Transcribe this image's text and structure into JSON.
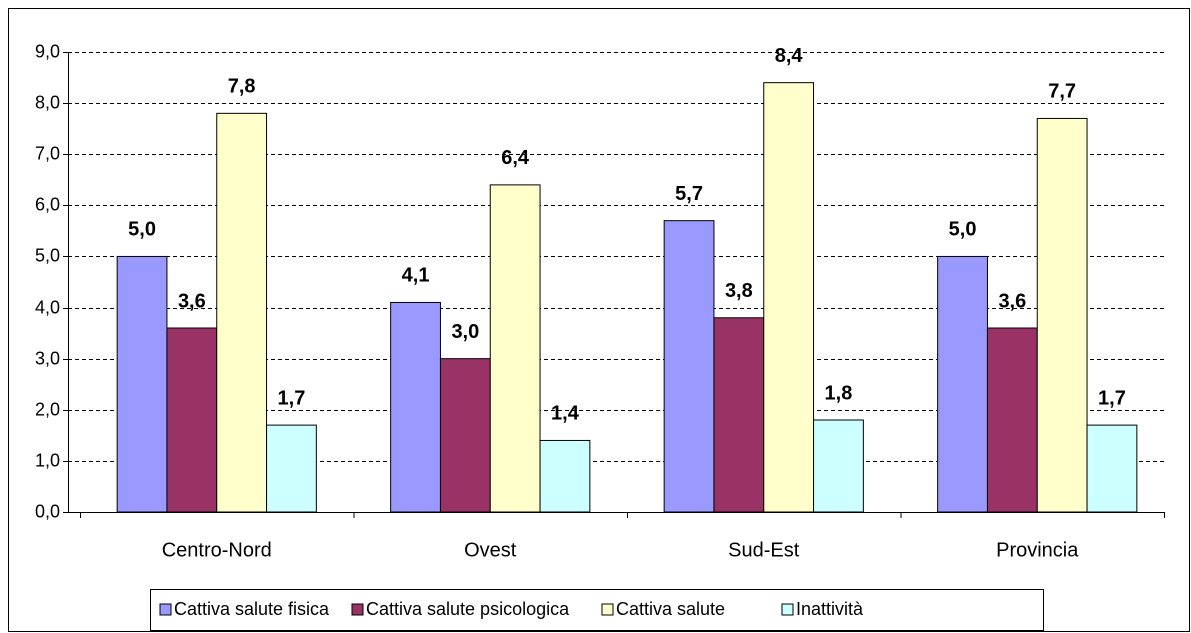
{
  "chart_data": {
    "type": "bar",
    "categories": [
      "Centro-Nord",
      "Ovest",
      "Sud-Est",
      "Provincia"
    ],
    "series": [
      {
        "name": "Cattiva salute fisica",
        "color": "#9999ff",
        "values": [
          5.0,
          4.1,
          5.7,
          5.0
        ],
        "value_labels": [
          "5,0",
          "4,1",
          "5,7",
          "5,0"
        ]
      },
      {
        "name": "Cattiva salute psicologica",
        "color": "#993366",
        "values": [
          3.6,
          3.0,
          3.8,
          3.6
        ],
        "value_labels": [
          "3,6",
          "3,0",
          "3,8",
          "3,6"
        ]
      },
      {
        "name": "Cattiva salute",
        "color": "#ffffcc",
        "values": [
          7.8,
          6.4,
          8.4,
          7.7
        ],
        "value_labels": [
          "7,8",
          "6,4",
          "8,4",
          "7,7"
        ]
      },
      {
        "name": "Inattività",
        "color": "#ccffff",
        "values": [
          1.7,
          1.4,
          1.8,
          1.7
        ],
        "value_labels": [
          "1,7",
          "1,4",
          "1,8",
          "1,7"
        ]
      }
    ],
    "ylim": [
      0,
      9
    ],
    "yticks": [
      {
        "value": 0,
        "label": "0,0"
      },
      {
        "value": 1,
        "label": "1,0"
      },
      {
        "value": 2,
        "label": "2,0"
      },
      {
        "value": 3,
        "label": "3,0"
      },
      {
        "value": 4,
        "label": "4,0"
      },
      {
        "value": 5,
        "label": "5,0"
      },
      {
        "value": 6,
        "label": "6,0"
      },
      {
        "value": 7,
        "label": "7,0"
      },
      {
        "value": 8,
        "label": "8,0"
      },
      {
        "value": 9,
        "label": "9,0"
      }
    ],
    "grid": true,
    "legend": "bottom"
  }
}
